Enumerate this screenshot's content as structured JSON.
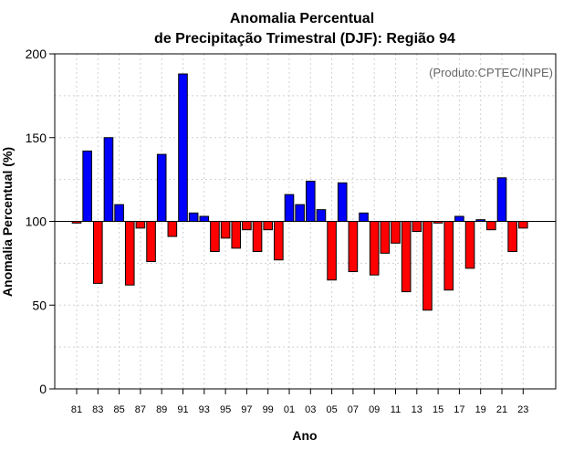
{
  "chart_data": {
    "type": "bar",
    "title": [
      "Anomalia Percentual",
      "de Precipitação Trimestral (DJF): Região 94"
    ],
    "xlabel": "Ano",
    "ylabel": "Anomalia Percentual (%)",
    "annotation": "(Produto:CPTEC/INPE)",
    "baseline": 100,
    "ylim": [
      0,
      200
    ],
    "yticks": [
      0,
      50,
      100,
      150,
      200
    ],
    "grid": true,
    "colors": {
      "above": "#0000ff",
      "below": "#ff0000"
    },
    "categories": [
      "81",
      "82",
      "83",
      "84",
      "85",
      "86",
      "87",
      "88",
      "89",
      "90",
      "91",
      "92",
      "93",
      "94",
      "95",
      "96",
      "97",
      "98",
      "99",
      "00",
      "01",
      "02",
      "03",
      "04",
      "05",
      "06",
      "07",
      "08",
      "09",
      "10",
      "11",
      "12",
      "13",
      "14",
      "15",
      "16",
      "17",
      "18",
      "19",
      "20",
      "21",
      "22",
      "23"
    ],
    "tick_labels": [
      "81",
      "83",
      "85",
      "87",
      "89",
      "91",
      "93",
      "95",
      "97",
      "99",
      "01",
      "03",
      "05",
      "07",
      "09",
      "11",
      "13",
      "15",
      "17",
      "19",
      "21",
      "23"
    ],
    "values": [
      99,
      142,
      63,
      150,
      110,
      62,
      96,
      76,
      140,
      91,
      188,
      105,
      103,
      82,
      90,
      84,
      95,
      82,
      95,
      77,
      116,
      110,
      124,
      107,
      65,
      123,
      70,
      105,
      68,
      81,
      87,
      58,
      94,
      47,
      99,
      59,
      103,
      72,
      101,
      95,
      126,
      82,
      96
    ]
  }
}
